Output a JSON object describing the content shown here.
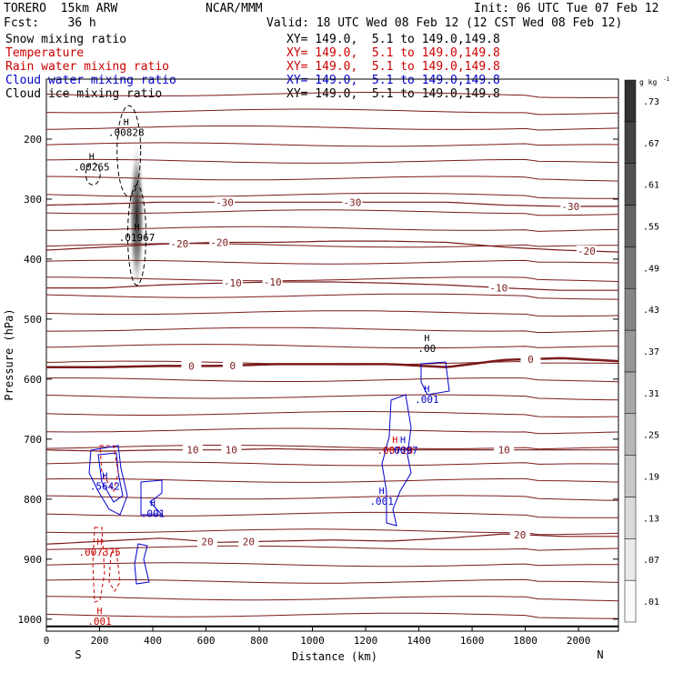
{
  "header": {
    "model": "TORERO  15km ARW",
    "center": "NCAR/MMM",
    "init": "Init: 06 UTC Tue 07 Feb 12",
    "fcst": "Fcst:    36 h",
    "valid": "Valid: 18 UTC Wed 08 Feb 12 (12 CST Wed 08 Feb 12)"
  },
  "fields": [
    {
      "label": "Snow mixing ratio",
      "xy": "XY= 149.0,  5.1 to 149.0,149.8",
      "color": "#000000"
    },
    {
      "label": "Temperature",
      "xy": "XY= 149.0,  5.1 to 149.0,149.8",
      "color": "#cc0000"
    },
    {
      "label": "Rain water mixing ratio",
      "xy": "XY= 149.0,  5.1 to 149.0,149.8",
      "color": "#cc0000"
    },
    {
      "label": "Cloud water mixing ratio",
      "xy": "XY= 149.0,  5.1 to 149.0,149.8",
      "color": "#0000cc"
    },
    {
      "label": "Cloud ice mixing ratio",
      "xy": "XY= 149.0,  5.1 to 149.0,149.8",
      "color": "#000000"
    }
  ],
  "chart_data": {
    "type": "cross-section",
    "xlabel": "Distance (km)",
    "ylabel": "Pressure (hPa)",
    "x_ticks": [
      0,
      200,
      400,
      600,
      800,
      1000,
      1200,
      1400,
      1600,
      1800,
      2000
    ],
    "y_ticks": [
      200,
      300,
      400,
      500,
      600,
      700,
      800,
      900,
      1000
    ],
    "xlim": [
      0,
      2150
    ],
    "ylim": [
      100,
      1020
    ],
    "y_reversed": true,
    "x_end_labels": {
      "left": "S",
      "right": "N"
    },
    "temperature_contours": [
      {
        "value": -30,
        "label": "-30",
        "y": [
          310,
          308,
          305,
          305,
          305,
          305,
          305,
          305,
          310,
          312,
          312
        ],
        "label_x": [
          670,
          1150,
          1970
        ]
      },
      {
        "value": -20,
        "label": "-20",
        "y": [
          385,
          380,
          375,
          372,
          372,
          370,
          370,
          372,
          380,
          385,
          388
        ],
        "label_x": [
          500,
          650,
          2030
        ]
      },
      {
        "value": -10,
        "label": "-10",
        "y": [
          448,
          448,
          443,
          440,
          438,
          438,
          440,
          443,
          448,
          452,
          452
        ],
        "label_x": [
          700,
          850,
          1700
        ]
      },
      {
        "value": 0,
        "label": "0",
        "y": [
          580,
          580,
          578,
          578,
          575,
          575,
          575,
          580,
          568,
          565,
          570
        ],
        "label_x": [
          545,
          700,
          1820
        ]
      },
      {
        "value": 10,
        "label": "10",
        "y": [
          718,
          720,
          718,
          718,
          716,
          718,
          718,
          718,
          718,
          718,
          718
        ],
        "label_x": [
          550,
          695,
          1720
        ]
      },
      {
        "value": 20,
        "label": "20",
        "y": [
          875,
          870,
          865,
          872,
          870,
          868,
          870,
          865,
          858,
          862,
          862
        ],
        "label_x": [
          605,
          760,
          1780
        ]
      }
    ],
    "maxima": [
      {
        "field": "Snow mixing ratio",
        "label": ".00828",
        "x": 300,
        "p": 190
      },
      {
        "field": "Snow mixing ratio",
        "label": ".00265",
        "x": 170,
        "p": 248
      },
      {
        "field": "Snow mixing ratio",
        "label": ".01967",
        "x": 340,
        "p": 365
      },
      {
        "field": "Cloud ice mixing ratio",
        "label": ".00",
        "x": 1430,
        "p": 550
      },
      {
        "field": "Cloud water mixing ratio",
        "label": ".001",
        "x": 1430,
        "p": 635
      },
      {
        "field": "Rain water mixing ratio",
        "label": ".00728",
        "x": 1310,
        "p": 720
      },
      {
        "field": "Cloud water mixing ratio",
        "label": ".0097",
        "x": 1340,
        "p": 720
      },
      {
        "field": "Cloud water mixing ratio",
        "label": ".001",
        "x": 1260,
        "p": 805
      },
      {
        "field": "Cloud water mixing ratio",
        "label": ".5642",
        "x": 220,
        "p": 780
      },
      {
        "field": "Cloud water mixing ratio",
        "label": ".001",
        "x": 400,
        "p": 825
      },
      {
        "field": "Rain water mixing ratio",
        "label": ".007375",
        "x": 200,
        "p": 890
      },
      {
        "field": "Rain water mixing ratio",
        "label": ".001",
        "x": 200,
        "p": 1005
      }
    ],
    "colorbar": {
      "unit": "g kg",
      "unit_exponent": "-1",
      "labels": [
        ".01",
        ".07",
        ".13",
        ".19",
        ".25",
        ".31",
        ".37",
        ".43",
        ".49",
        ".55",
        ".61",
        ".67",
        ".73"
      ]
    }
  }
}
